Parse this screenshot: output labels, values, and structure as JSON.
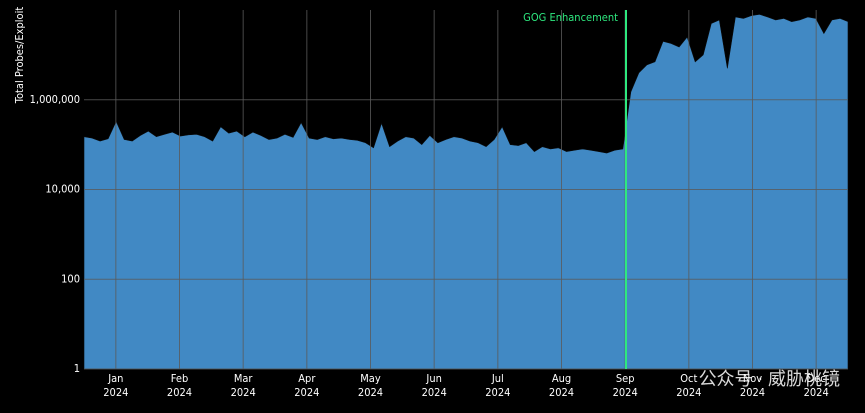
{
  "chart_data": {
    "type": "area",
    "y_label": "Total Probes/Exploit",
    "annotation": {
      "text": "GOG Enhancement",
      "color": "#2ee87f"
    },
    "watermark": "公众号 · 威胁桃镜",
    "x_ticks": [
      {
        "month": "Jan",
        "year": "2024"
      },
      {
        "month": "Feb",
        "year": "2024"
      },
      {
        "month": "Mar",
        "year": "2024"
      },
      {
        "month": "Apr",
        "year": "2024"
      },
      {
        "month": "May",
        "year": "2024"
      },
      {
        "month": "Jun",
        "year": "2024"
      },
      {
        "month": "Jul",
        "year": "2024"
      },
      {
        "month": "Aug",
        "year": "2024"
      },
      {
        "month": "Sep",
        "year": "2024"
      },
      {
        "month": "Oct",
        "year": "2024"
      },
      {
        "month": "Nov",
        "year": "2024"
      },
      {
        "month": "Dec",
        "year": "2024"
      }
    ],
    "color": "#4189c4",
    "log_scale": true,
    "grid": true,
    "ylim": [
      1,
      100000000
    ],
    "yticks": [
      1,
      100,
      {
        "value": 10000,
        "label": "10,000"
      },
      {
        "value": 1000000,
        "label": "1,000,000"
      }
    ],
    "values": [
      150000,
      140000,
      120000,
      135000,
      330000,
      130000,
      120000,
      160000,
      200000,
      150000,
      170000,
      190000,
      155000,
      165000,
      170000,
      150000,
      120000,
      250000,
      180000,
      200000,
      150000,
      190000,
      160000,
      130000,
      140000,
      170000,
      145000,
      310000,
      140000,
      130000,
      150000,
      135000,
      140000,
      130000,
      125000,
      110000,
      85000,
      300000,
      90000,
      120000,
      150000,
      140000,
      100000,
      160000,
      110000,
      130000,
      150000,
      140000,
      120000,
      110000,
      90000,
      130000,
      250000,
      100000,
      95000,
      110000,
      70000,
      90000,
      80000,
      85000,
      70000,
      75000,
      80000,
      75000,
      70000,
      65000,
      75000,
      80000,
      1500000,
      4000000,
      6000000,
      7000000,
      20000000,
      18000000,
      15000000,
      25000000,
      7000000,
      10000000,
      50000000,
      60000000,
      5000000,
      70000000,
      65000000,
      75000000,
      80000000,
      70000000,
      60000000,
      65000000,
      55000000,
      60000000,
      70000000,
      65000000,
      30000000,
      60000000,
      65000000,
      55000000
    ]
  }
}
